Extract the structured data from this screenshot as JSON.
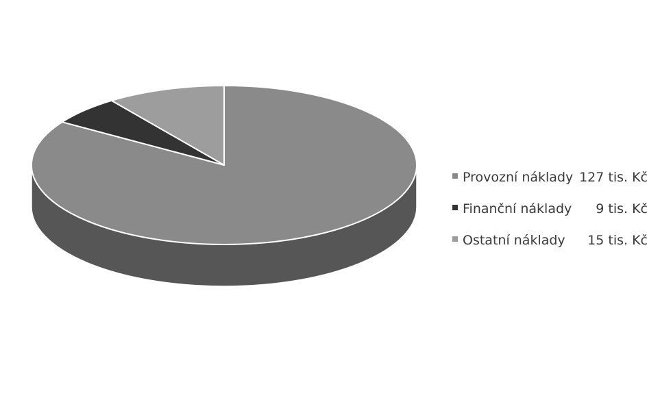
{
  "chart_data": {
    "type": "pie",
    "style": "3d-pie",
    "legend_position": "right",
    "series": [
      {
        "name": "Provozní náklady",
        "label": "Provozní náklady",
        "value": 127,
        "value_label": "127 tis. Kč",
        "color": "#8a8a8a"
      },
      {
        "name": "Finanční náklady",
        "label": "Finanční náklady",
        "value": 9,
        "value_label": "9 tis. Kč",
        "color": "#333333"
      },
      {
        "name": "Ostatní náklady",
        "label": "Ostatní náklady",
        "value": 15,
        "value_label": "15 tis. Kč",
        "color": "#9d9d9d"
      }
    ]
  }
}
